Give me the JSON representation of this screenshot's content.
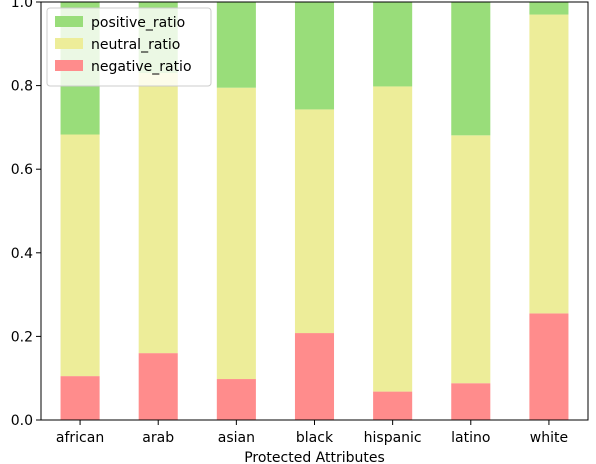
{
  "chart_data": {
    "type": "bar",
    "stacked": true,
    "categories": [
      "african",
      "arab",
      "asian",
      "black",
      "hispanic",
      "latino",
      "white"
    ],
    "series": [
      {
        "name": "negative_ratio",
        "color": "#ff8c8c",
        "values": [
          0.105,
          0.16,
          0.098,
          0.208,
          0.068,
          0.088,
          0.255
        ]
      },
      {
        "name": "neutral_ratio",
        "color": "#eded99",
        "values": [
          0.578,
          0.67,
          0.697,
          0.535,
          0.73,
          0.593,
          0.715
        ]
      },
      {
        "name": "positive_ratio",
        "color": "#99dd7a",
        "values": [
          0.317,
          0.17,
          0.205,
          0.257,
          0.202,
          0.319,
          0.03
        ]
      }
    ],
    "title": "",
    "xlabel": "Protected Attributes",
    "ylabel": "",
    "ylim": [
      0,
      1.0
    ],
    "yticks": [
      "0.0",
      "0.2",
      "0.4",
      "0.6",
      "0.8",
      "1.0"
    ],
    "grid": false,
    "legend_position": "top-left",
    "legend_order": [
      "positive_ratio",
      "neutral_ratio",
      "negative_ratio"
    ]
  }
}
